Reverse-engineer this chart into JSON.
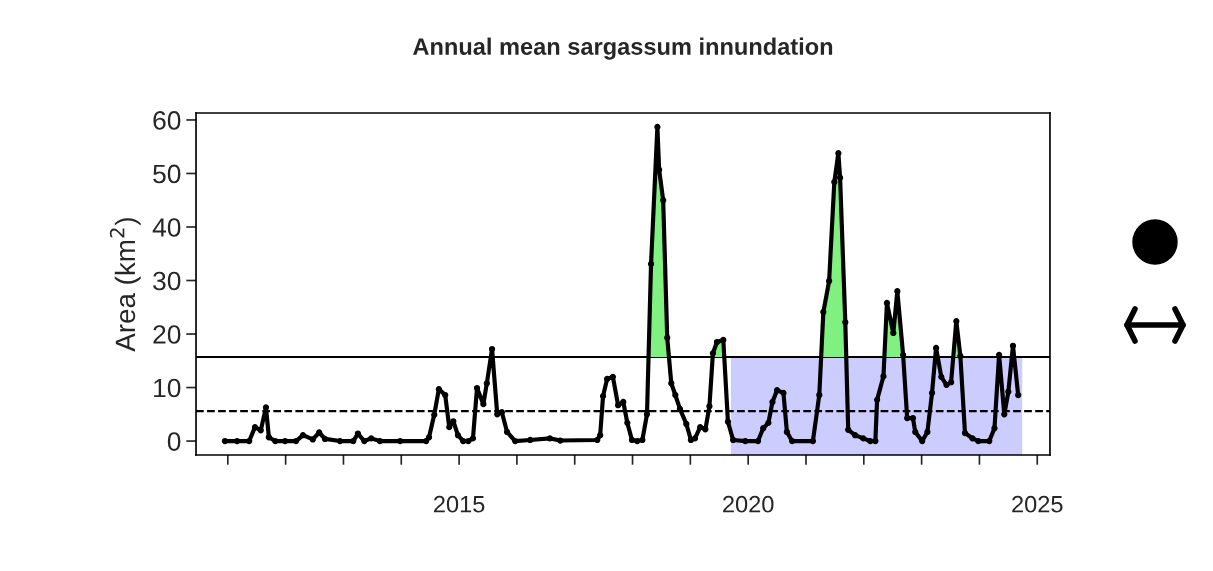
{
  "chart_data": {
    "type": "line",
    "title": "Annual mean sargassum innundation",
    "ylabel": "Area (km$^{2}$)",
    "xlim": [
      2010.45,
      2025.22
    ],
    "ylim": [
      -2.6,
      61.3
    ],
    "xticks": [
      {
        "value": 2011,
        "label": null
      },
      {
        "value": 2012,
        "label": null
      },
      {
        "value": 2013,
        "label": null
      },
      {
        "value": 2014,
        "label": null
      },
      2015,
      {
        "value": 2016,
        "label": null
      },
      {
        "value": 2017,
        "label": null
      },
      {
        "value": 2018,
        "label": null
      },
      {
        "value": 2019,
        "label": null
      },
      2020,
      {
        "value": 2021,
        "label": null
      },
      {
        "value": 2022,
        "label": null
      },
      {
        "value": 2023,
        "label": null
      },
      {
        "value": 2024,
        "label": null
      },
      2025
    ],
    "yticks": [
      0,
      10,
      20,
      30,
      40,
      50,
      60
    ],
    "grid": false,
    "series": [
      {
        "color": "#000000",
        "marker": "circle",
        "line_style": "solid",
        "x": [
          2010.95,
          2011.16,
          2011.37,
          2011.47,
          2011.57,
          2011.66,
          2011.71,
          2011.82,
          2011.99,
          2012.18,
          2012.3,
          2012.47,
          2012.58,
          2012.68,
          2012.94,
          2013.17,
          2013.25,
          2013.36,
          2013.48,
          2013.63,
          2013.98,
          2014.43,
          2014.48,
          2014.57,
          2014.65,
          2014.76,
          2014.83,
          2014.9,
          2014.98,
          2015.07,
          2015.16,
          2015.24,
          2015.31,
          2015.42,
          2015.48,
          2015.57,
          2015.66,
          2015.74,
          2015.83,
          2015.97,
          2016.23,
          2016.57,
          2016.75,
          2017.39,
          2017.44,
          2017.49,
          2017.56,
          2017.66,
          2017.75,
          2017.84,
          2017.91,
          2017.99,
          2018.08,
          2018.17,
          2018.25,
          2018.32,
          2018.43,
          2018.46,
          2018.53,
          2018.6,
          2018.67,
          2018.74,
          2018.82,
          2018.93,
          2019.01,
          2019.08,
          2019.17,
          2019.26,
          2019.33,
          2019.39,
          2019.46,
          2019.57,
          2019.65,
          2019.74,
          2019.95,
          2020.17,
          2020.26,
          2020.35,
          2020.42,
          2020.5,
          2020.61,
          2020.67,
          2020.76,
          2021.12,
          2021.23,
          2021.3,
          2021.4,
          2021.49,
          2021.56,
          2021.59,
          2021.68,
          2021.73,
          2021.85,
          2021.99,
          2022.11,
          2022.2,
          2022.23,
          2022.34,
          2022.4,
          2022.51,
          2022.58,
          2022.68,
          2022.75,
          2022.85,
          2022.89,
          2023.01,
          2023.1,
          2023.18,
          2023.25,
          2023.34,
          2023.43,
          2023.51,
          2023.6,
          2023.67,
          2023.75,
          2023.88,
          2023.98,
          2024.17,
          2024.26,
          2024.34,
          2024.43,
          2024.5,
          2024.58,
          2024.67
        ],
        "values": [
          0,
          0,
          0,
          2.6,
          2.0,
          6.3,
          0.7,
          0,
          0,
          0,
          1.1,
          0.3,
          1.6,
          0.4,
          0,
          0,
          1.4,
          0,
          0.5,
          0,
          0,
          0,
          0.7,
          4.9,
          9.7,
          8.6,
          2.6,
          3.7,
          1.1,
          0,
          0,
          0.5,
          9.9,
          6.9,
          10.8,
          17.2,
          5.0,
          5.4,
          1.7,
          0,
          0.2,
          0.5,
          0.1,
          0.2,
          1.1,
          8.4,
          11.6,
          12.0,
          6.7,
          7.3,
          3.4,
          0.2,
          0,
          0.2,
          5.0,
          33.1,
          58.7,
          50.7,
          45.0,
          19.3,
          10.8,
          8.6,
          6.0,
          3.2,
          0.2,
          0.5,
          2.6,
          2.2,
          6.5,
          16.4,
          18.5,
          18.9,
          3.6,
          0.2,
          0,
          0,
          2.4,
          3.4,
          7.3,
          9.5,
          9.0,
          1.7,
          0,
          0,
          8.6,
          24.1,
          29.9,
          48.4,
          53.8,
          49.2,
          22.2,
          2.1,
          1.1,
          0.5,
          0,
          0,
          7.7,
          12.1,
          25.8,
          20.2,
          28.0,
          16.1,
          4.3,
          4.3,
          1.7,
          0,
          1.7,
          9.0,
          17.4,
          12.0,
          10.5,
          11.0,
          22.4,
          15.9,
          1.5,
          0.5,
          0,
          0,
          2.4,
          16.1,
          5.0,
          9.2,
          17.8,
          8.6
        ]
      },
      {
        "type": "area",
        "color": "#80f080",
        "x": [
          2018.28,
          2018.32,
          2018.43,
          2018.46,
          2018.53,
          2018.6,
          2018.63
        ],
        "values": [
          15.7,
          33.1,
          58.7,
          50.7,
          45.0,
          19.3,
          15.7
        ]
      },
      {
        "type": "area",
        "color": "#80f080",
        "x": [
          2019.38,
          2019.39,
          2019.46,
          2019.57,
          2019.59
        ],
        "values": [
          15.7,
          16.4,
          18.5,
          18.9,
          15.7
        ]
      },
      {
        "type": "area",
        "color": "#80f080",
        "x": [
          2021.26,
          2021.3,
          2021.4,
          2021.49,
          2021.56,
          2021.59,
          2021.68,
          2021.7
        ],
        "values": [
          15.7,
          24.1,
          29.9,
          48.4,
          53.8,
          49.2,
          22.2,
          15.7
        ]
      },
      {
        "type": "area",
        "color": "#80f080",
        "x": [
          2022.36,
          2022.4,
          2022.51,
          2022.58,
          2022.68
        ],
        "values": [
          15.7,
          25.8,
          20.2,
          28.0,
          16.1
        ]
      },
      {
        "type": "area",
        "color": "#80f080",
        "x": [
          2023.55,
          2023.6,
          2023.67
        ],
        "values": [
          15.7,
          22.4,
          15.9
        ]
      }
    ],
    "ref_lines": [
      {
        "axis": "y",
        "value": 15.7,
        "color": "#000000",
        "line_style": "solid"
      },
      {
        "axis": "y",
        "value": 5.6,
        "color": "#000000",
        "line_style": "dashed"
      }
    ],
    "bands": [
      {
        "axis": "x",
        "from": 2019.7,
        "to": 2024.74,
        "color": "#ccccff"
      }
    ]
  }
}
